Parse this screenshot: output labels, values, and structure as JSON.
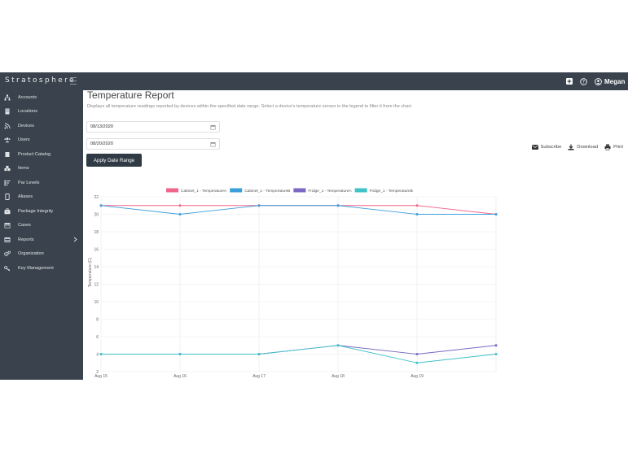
{
  "app": {
    "brand": "Stratosphere"
  },
  "topbar": {
    "user_name": "Megan"
  },
  "sidebar": {
    "items": [
      {
        "label": "Accounts",
        "icon": "sitemap-icon"
      },
      {
        "label": "Locations",
        "icon": "building-icon"
      },
      {
        "label": "Devices",
        "icon": "signal-icon"
      },
      {
        "label": "Users",
        "icon": "users-icon"
      },
      {
        "label": "Product Catalog",
        "icon": "book-icon"
      },
      {
        "label": "Items",
        "icon": "cubes-icon"
      },
      {
        "label": "Par Levels",
        "icon": "bars-icon"
      },
      {
        "label": "Aliases",
        "icon": "tablet-icon"
      },
      {
        "label": "Package Integrity",
        "icon": "briefcase-icon"
      },
      {
        "label": "Cases",
        "icon": "calendar-icon"
      },
      {
        "label": "Reports",
        "icon": "table-icon",
        "has_submenu": true
      },
      {
        "label": "Organization",
        "icon": "gears-icon"
      },
      {
        "label": "Key Management",
        "icon": "key-icon"
      }
    ]
  },
  "main": {
    "title": "Temperature Report",
    "description": "Displays all temperature readings reported by devices within the specified date range. Select a device's temperature sensor in the legend to filter it from the chart.",
    "start_date": "08/13/2020",
    "end_date": "08/20/2020",
    "apply_label": "Apply Date Range",
    "actions": {
      "subscribe": "Subscribe",
      "download": "Download",
      "print": "Print"
    }
  },
  "chart_data": {
    "type": "line",
    "xlabel": "",
    "ylabel": "Temperature (C)",
    "ylim": [
      2,
      22
    ],
    "yticks": [
      2,
      4,
      6,
      8,
      10,
      12,
      14,
      16,
      18,
      20,
      22
    ],
    "xlim": [
      0,
      5
    ],
    "x_tick_labels": [
      "Aug 15",
      "Aug 16",
      "Aug 17",
      "Aug 18",
      "Aug 19"
    ],
    "grid": true,
    "legend": "top",
    "series": [
      {
        "name": "Cabinet_1 - TemperatureA",
        "color": "#f0668a",
        "x": [
          0,
          1,
          2,
          3,
          4,
          5
        ],
        "values": [
          21,
          21,
          21,
          21,
          21,
          20
        ]
      },
      {
        "name": "Cabinet_1 - TemperatureB",
        "color": "#3b9fdc",
        "x": [
          0,
          1,
          2,
          3,
          4,
          5
        ],
        "values": [
          21,
          20,
          21,
          21,
          20,
          20
        ]
      },
      {
        "name": "Fridge_1 - TemperatureA",
        "color": "#7a68c4",
        "x": [
          0,
          1,
          2,
          3,
          4,
          5
        ],
        "values": [
          4,
          4,
          4,
          5,
          4,
          5
        ]
      },
      {
        "name": "Fridge_1 - TemperatureB",
        "color": "#3fc2c8",
        "x": [
          0,
          1,
          2,
          3,
          4,
          5
        ],
        "values": [
          4,
          4,
          4,
          5,
          3,
          4
        ]
      }
    ]
  }
}
